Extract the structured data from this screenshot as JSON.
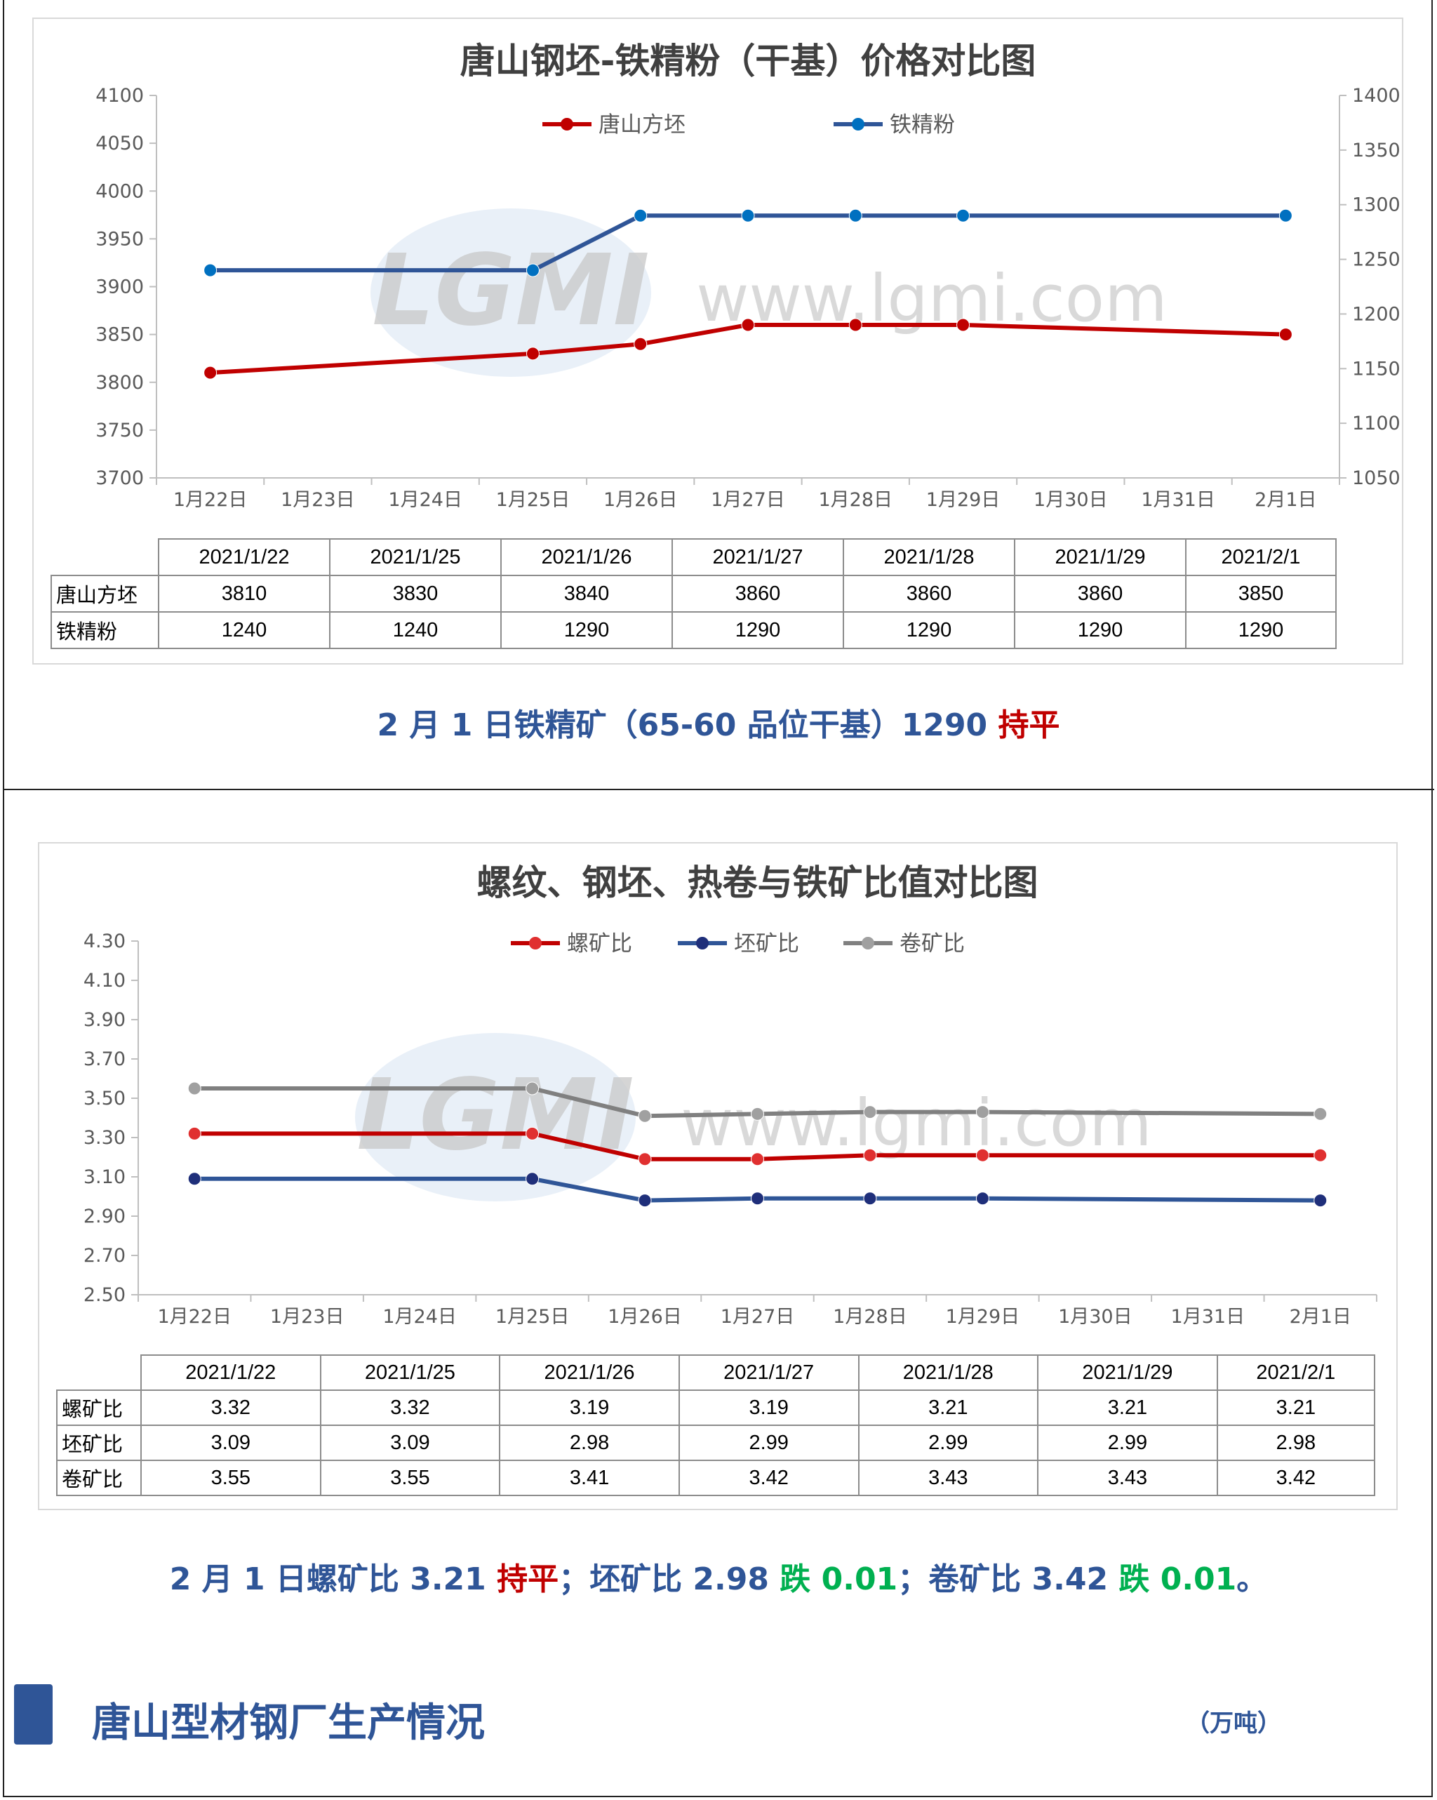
{
  "watermark": {
    "logo": "LGMI",
    "url": "www.lgmi.com"
  },
  "chart_data": [
    {
      "type": "line",
      "title": "唐山钢坯-铁精粉（干基）价格对比图",
      "categories": [
        "1月22日",
        "1月23日",
        "1月24日",
        "1月25日",
        "1月26日",
        "1月27日",
        "1月28日",
        "1月29日",
        "1月30日",
        "1月31日",
        "2月1日"
      ],
      "series": [
        {
          "name": "唐山方坯",
          "axis": "left",
          "color": "#c00000",
          "values": [
            3810,
            null,
            null,
            3830,
            3840,
            3860,
            3860,
            3860,
            null,
            null,
            3850
          ]
        },
        {
          "name": "铁精粉",
          "axis": "right",
          "color": "#2f5597",
          "marker": "#0070c0",
          "values": [
            1240,
            null,
            null,
            1240,
            1290,
            1290,
            1290,
            1290,
            null,
            null,
            1290
          ]
        }
      ],
      "ylim_left": [
        3700,
        4100
      ],
      "yticks_left": [
        "3700",
        "3750",
        "3800",
        "3850",
        "3900",
        "3950",
        "4000",
        "4050",
        "4100"
      ],
      "ylim_right": [
        1050,
        1400
      ],
      "yticks_right": [
        "1050",
        "1100",
        "1150",
        "1200",
        "1250",
        "1300",
        "1350",
        "1400"
      ],
      "legend": "top",
      "grid": false,
      "table": {
        "headers": [
          "2021/1/22",
          "2021/1/25",
          "2021/1/26",
          "2021/1/27",
          "2021/1/28",
          "2021/1/29",
          "2021/2/1"
        ],
        "rows": [
          {
            "label": "唐山方坯",
            "values": [
              "3810",
              "3830",
              "3840",
              "3860",
              "3860",
              "3860",
              "3850"
            ]
          },
          {
            "label": "铁精粉",
            "values": [
              "1240",
              "1240",
              "1290",
              "1290",
              "1290",
              "1290",
              "1290"
            ]
          }
        ]
      }
    },
    {
      "type": "line",
      "title": "螺纹、钢坯、热卷与铁矿比值对比图",
      "categories": [
        "1月22日",
        "1月23日",
        "1月24日",
        "1月25日",
        "1月26日",
        "1月27日",
        "1月28日",
        "1月29日",
        "1月30日",
        "1月31日",
        "2月1日"
      ],
      "series": [
        {
          "name": "螺矿比",
          "color": "#c00000",
          "marker": "#e03030",
          "values": [
            3.32,
            null,
            null,
            3.32,
            3.19,
            3.19,
            3.21,
            3.21,
            null,
            null,
            3.21
          ]
        },
        {
          "name": "坯矿比",
          "color": "#2f5597",
          "marker": "#1f2f7a",
          "values": [
            3.09,
            null,
            null,
            3.09,
            2.98,
            2.99,
            2.99,
            2.99,
            null,
            null,
            2.98
          ]
        },
        {
          "name": "卷矿比",
          "color": "#808080",
          "marker": "#a0a0a0",
          "values": [
            3.55,
            null,
            null,
            3.55,
            3.41,
            3.42,
            3.43,
            3.43,
            null,
            null,
            3.42
          ]
        }
      ],
      "ylim": [
        2.5,
        4.3
      ],
      "yticks": [
        "2.50",
        "2.70",
        "2.90",
        "3.10",
        "3.30",
        "3.50",
        "3.70",
        "3.90",
        "4.10",
        "4.30"
      ],
      "legend": "top",
      "grid": false,
      "table": {
        "headers": [
          "2021/1/22",
          "2021/1/25",
          "2021/1/26",
          "2021/1/27",
          "2021/1/28",
          "2021/1/29",
          "2021/2/1"
        ],
        "rows": [
          {
            "label": "螺矿比",
            "values": [
              "3.32",
              "3.32",
              "3.19",
              "3.19",
              "3.21",
              "3.21",
              "3.21"
            ]
          },
          {
            "label": "坯矿比",
            "values": [
              "3.09",
              "3.09",
              "2.98",
              "2.99",
              "2.99",
              "2.99",
              "2.98"
            ]
          },
          {
            "label": "卷矿比",
            "values": [
              "3.55",
              "3.55",
              "3.41",
              "3.42",
              "3.43",
              "3.43",
              "3.42"
            ]
          }
        ]
      }
    }
  ],
  "summary1": {
    "text": "2 月 1 日铁精矿（65-60 品位干基）1290 ",
    "status": "持平"
  },
  "summary2": {
    "p1": "2 月 1 日螺矿比 3.21 ",
    "s1": "持平",
    "p2": "；坯矿比 2.98 ",
    "s2": "跌 0.01",
    "p3": "；卷矿比 3.42 ",
    "s3": "跌 0.01",
    "p4": "。"
  },
  "section": {
    "title": "唐山型材钢厂生产情况",
    "unit": "（万吨）"
  }
}
